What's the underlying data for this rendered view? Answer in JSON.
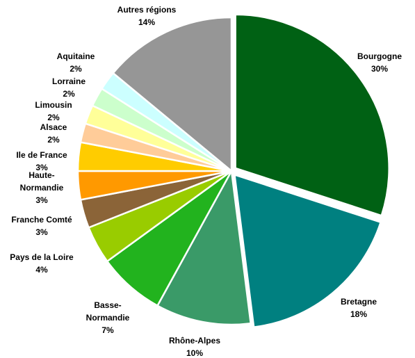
{
  "chart_data": {
    "type": "pie",
    "title": "",
    "slices": [
      {
        "label": "Bourgogne",
        "label_lines": [
          "Bourgogne"
        ],
        "value": 30,
        "value_text": "30%",
        "color": "#006114"
      },
      {
        "label": "Bretagne",
        "label_lines": [
          "Bretagne"
        ],
        "value": 18,
        "value_text": "18%",
        "color": "#008080"
      },
      {
        "label": "Rhône-Alpes",
        "label_lines": [
          "Rhône-Alpes"
        ],
        "value": 10,
        "value_text": "10%",
        "color": "#3A9A68"
      },
      {
        "label": "Basse-Normandie",
        "label_lines": [
          "Basse-",
          "Normandie"
        ],
        "value": 7,
        "value_text": "7%",
        "color": "#22B31E"
      },
      {
        "label": "Pays de la Loire",
        "label_lines": [
          "Pays de la Loire"
        ],
        "value": 4,
        "value_text": "4%",
        "color": "#99CC00"
      },
      {
        "label": "Franche Comté",
        "label_lines": [
          "Franche Comté"
        ],
        "value": 3,
        "value_text": "3%",
        "color": "#8B6438"
      },
      {
        "label": "Haute-Normandie",
        "label_lines": [
          "Haute-",
          "Normandie"
        ],
        "value": 3,
        "value_text": "3%",
        "color": "#FF9900"
      },
      {
        "label": "Ile de France",
        "label_lines": [
          "Ile de France"
        ],
        "value": 3,
        "value_text": "3%",
        "color": "#FFCC00"
      },
      {
        "label": "Alsace",
        "label_lines": [
          "Alsace"
        ],
        "value": 2,
        "value_text": "2%",
        "color": "#FFCC99"
      },
      {
        "label": "Limousin",
        "label_lines": [
          "Limousin"
        ],
        "value": 2,
        "value_text": "2%",
        "color": "#FFFF99"
      },
      {
        "label": "Lorraine",
        "label_lines": [
          "Lorraine"
        ],
        "value": 2,
        "value_text": "2%",
        "color": "#CCFFCC"
      },
      {
        "label": "Aquitaine",
        "label_lines": [
          "Aquitaine"
        ],
        "value": 2,
        "value_text": "2%",
        "color": "#CCFFFF"
      },
      {
        "label": "Autres régions",
        "label_lines": [
          "Autres régions"
        ],
        "value": 14,
        "value_text": "14%",
        "color": "#969696"
      }
    ],
    "start_angle": "12 o'clock",
    "direction": "clockwise",
    "exploded_slices": [
      "Bourgogne",
      "Bretagne"
    ],
    "legend": "none (labels placed beside slices)"
  }
}
